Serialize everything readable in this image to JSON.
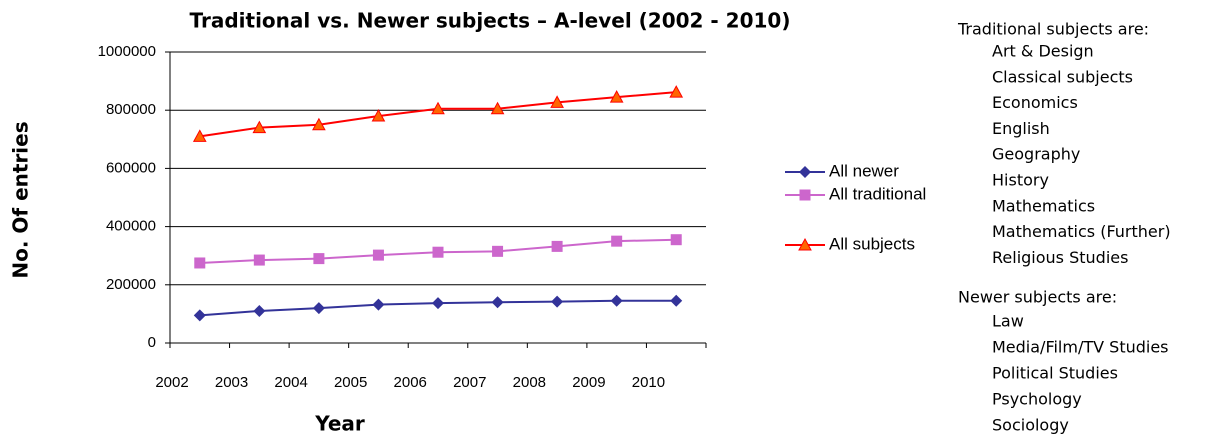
{
  "chart_data": {
    "type": "line",
    "title": "Traditional vs. Newer subjects – A-level (2002 - 2010)",
    "x_label": "Year",
    "y_label": "No. Of entries",
    "categories": [
      "2002",
      "2003",
      "2004",
      "2005",
      "2006",
      "2007",
      "2008",
      "2009",
      "2010"
    ],
    "series": [
      {
        "name": "All newer",
        "color": "#333399",
        "marker": "diamond",
        "values": [
          95000,
          110000,
          120000,
          132000,
          137000,
          140000,
          142000,
          145000,
          145000
        ]
      },
      {
        "name": "All traditional",
        "color": "#cc66cc",
        "marker": "square",
        "values": [
          275000,
          285000,
          290000,
          302000,
          312000,
          315000,
          332000,
          350000,
          355000
        ]
      },
      {
        "name": "All subjects",
        "color": "#ff0000",
        "marker": "triangle",
        "values": [
          710000,
          740000,
          750000,
          780000,
          805000,
          805000,
          827000,
          845000,
          862000
        ]
      }
    ],
    "ylim": [
      0,
      1000000
    ],
    "yticks": [
      0,
      200000,
      400000,
      600000,
      800000,
      1000000
    ],
    "grid": true,
    "legend": "right"
  },
  "sidebar": {
    "traditional_heading": "Traditional subjects are:",
    "traditional": [
      "Art & Design",
      "Classical subjects",
      "Economics",
      "English",
      "Geography",
      "History",
      "Mathematics",
      "Mathematics (Further)",
      "Religious Studies"
    ],
    "newer_heading": "Newer subjects are:",
    "newer": [
      "Law",
      "Media/Film/TV Studies",
      "Political Studies",
      "Psychology",
      "Sociology"
    ]
  }
}
